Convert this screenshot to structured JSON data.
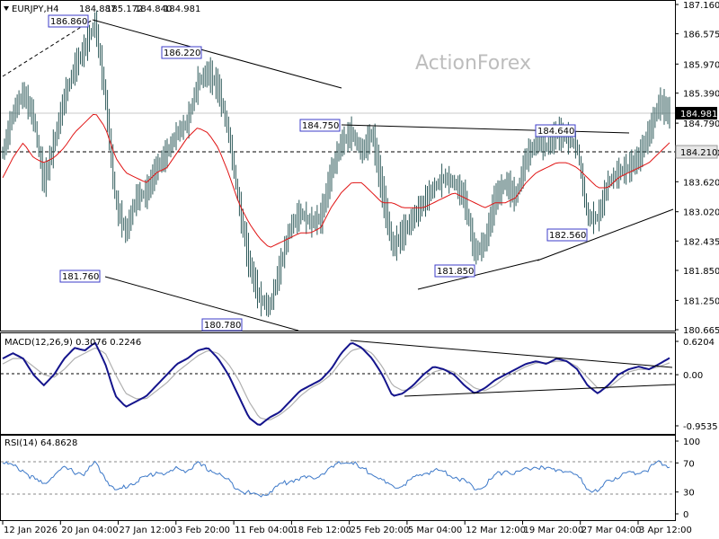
{
  "header": {
    "symbol": "EURJPY,H4",
    "open": "184.887",
    "high": "185.172",
    "low": "184.840",
    "close": "184.981"
  },
  "watermark": "ActionForex",
  "chart_data": [
    {
      "panel": "price",
      "type": "candlestick",
      "x_ticks": [
        "12 Jan 2026",
        "20 Jan 04:00",
        "27 Jan 12:00",
        "3 Feb 20:00",
        "11 Feb 04:00",
        "18 Feb 12:00",
        "25 Feb 20:00",
        "5 Mar 04:00",
        "12 Mar 12:00",
        "19 Mar 20:00",
        "27 Mar 04:00",
        "3 Apr 12:00"
      ],
      "y_ticks": [
        187.16,
        186.575,
        185.97,
        185.39,
        184.79,
        184.21,
        183.62,
        183.02,
        182.435,
        181.85,
        181.25,
        180.665
      ],
      "ylim": [
        180.665,
        187.16
      ],
      "current_price": "184.981",
      "reference_level": "184.210",
      "close_series": [
        184.2,
        185.0,
        185.4,
        184.9,
        183.6,
        184.4,
        185.3,
        185.9,
        186.3,
        186.8,
        185.3,
        183.2,
        182.6,
        183.3,
        183.4,
        183.9,
        184.2,
        184.6,
        184.8,
        185.6,
        185.8,
        185.5,
        184.6,
        183.2,
        182.0,
        181.3,
        181.1,
        181.9,
        182.7,
        183.0,
        182.8,
        182.9,
        183.8,
        184.4,
        184.6,
        184.2,
        184.6,
        183.4,
        182.3,
        182.6,
        182.9,
        183.2,
        183.5,
        183.7,
        183.6,
        183.3,
        182.2,
        182.4,
        183.3,
        183.6,
        183.3,
        184.1,
        184.4,
        184.3,
        184.6,
        184.5,
        184.3,
        182.9,
        182.9,
        183.6,
        183.8,
        183.9,
        184.1,
        184.6,
        185.2,
        184.98
      ],
      "ma_series": [
        183.7,
        184.1,
        184.4,
        184.1,
        184.0,
        184.1,
        184.3,
        184.6,
        184.8,
        185.0,
        184.7,
        184.1,
        183.8,
        183.7,
        183.6,
        183.8,
        183.9,
        184.2,
        184.5,
        184.7,
        184.6,
        184.3,
        183.8,
        183.2,
        182.8,
        182.5,
        182.3,
        182.4,
        182.5,
        182.6,
        182.6,
        182.7,
        183.1,
        183.4,
        183.6,
        183.6,
        183.4,
        183.2,
        183.2,
        183.1,
        183.1,
        183.1,
        183.2,
        183.3,
        183.4,
        183.3,
        183.2,
        183.1,
        183.2,
        183.2,
        183.3,
        183.6,
        183.8,
        183.9,
        184.0,
        184.0,
        183.9,
        183.7,
        183.5,
        183.5,
        183.7,
        183.8,
        183.9,
        184.0,
        184.2,
        184.4
      ],
      "price_labels": [
        "186.860",
        "186.220",
        "181.760",
        "180.780",
        "184.750",
        "184.640",
        "182.560",
        "181.850"
      ]
    },
    {
      "panel": "macd",
      "type": "line",
      "title": "MACD(12,26,9) 0.3076 0.2246",
      "y_ticks": [
        "0.6204",
        "0.00",
        "-0.9535"
      ],
      "ylim": [
        -0.9535,
        0.6204
      ],
      "series": [
        {
          "name": "MACD",
          "values": [
            0.3,
            0.4,
            0.3,
            0.0,
            -0.2,
            0.0,
            0.3,
            0.5,
            0.45,
            0.6,
            0.2,
            -0.4,
            -0.6,
            -0.5,
            -0.4,
            -0.2,
            0.0,
            0.2,
            0.3,
            0.45,
            0.5,
            0.3,
            0.0,
            -0.4,
            -0.8,
            -0.95,
            -0.8,
            -0.7,
            -0.5,
            -0.3,
            -0.2,
            -0.1,
            0.1,
            0.4,
            0.6,
            0.5,
            0.3,
            0.0,
            -0.4,
            -0.35,
            -0.2,
            0.0,
            0.15,
            0.1,
            0.0,
            -0.2,
            -0.35,
            -0.25,
            -0.1,
            0.0,
            0.1,
            0.2,
            0.25,
            0.2,
            0.3,
            0.25,
            0.1,
            -0.2,
            -0.35,
            -0.2,
            0.0,
            0.1,
            0.15,
            0.1,
            0.2,
            0.31
          ]
        },
        {
          "name": "Signal",
          "values": [
            0.2,
            0.3,
            0.3,
            0.15,
            0.0,
            -0.05,
            0.1,
            0.3,
            0.4,
            0.5,
            0.4,
            0.0,
            -0.35,
            -0.45,
            -0.45,
            -0.3,
            -0.15,
            0.05,
            0.2,
            0.35,
            0.45,
            0.4,
            0.2,
            -0.1,
            -0.5,
            -0.8,
            -0.85,
            -0.75,
            -0.6,
            -0.4,
            -0.25,
            -0.15,
            0.0,
            0.25,
            0.45,
            0.5,
            0.4,
            0.15,
            -0.2,
            -0.3,
            -0.25,
            -0.1,
            0.05,
            0.1,
            0.05,
            -0.1,
            -0.25,
            -0.3,
            -0.2,
            -0.05,
            0.05,
            0.15,
            0.22,
            0.22,
            0.25,
            0.25,
            0.15,
            -0.05,
            -0.25,
            -0.25,
            -0.1,
            0.05,
            0.1,
            0.1,
            0.15,
            0.22
          ]
        }
      ]
    },
    {
      "panel": "rsi",
      "type": "line",
      "title": "RSI(14) 64.8628",
      "y_ticks": [
        "100",
        "70",
        "30",
        "0"
      ],
      "ylim": [
        0,
        100
      ],
      "series": [
        {
          "name": "RSI",
          "values": [
            72,
            65,
            60,
            48,
            40,
            55,
            62,
            58,
            55,
            70,
            50,
            30,
            38,
            45,
            50,
            58,
            55,
            62,
            60,
            68,
            62,
            55,
            45,
            35,
            28,
            25,
            30,
            40,
            45,
            50,
            48,
            55,
            62,
            70,
            72,
            60,
            58,
            45,
            35,
            40,
            48,
            55,
            60,
            58,
            52,
            45,
            35,
            40,
            52,
            60,
            55,
            62,
            65,
            60,
            62,
            58,
            52,
            35,
            30,
            45,
            52,
            55,
            58,
            62,
            70,
            65
          ]
        }
      ]
    }
  ]
}
